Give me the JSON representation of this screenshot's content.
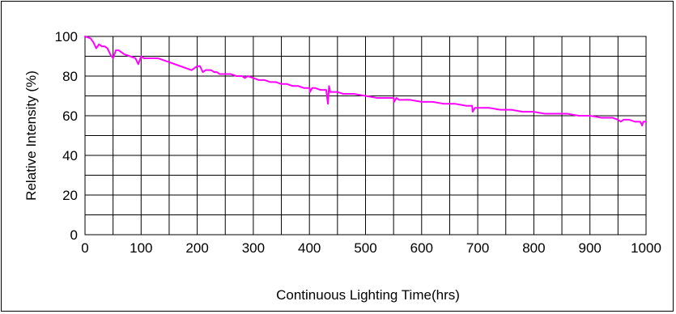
{
  "chart_data": {
    "type": "line",
    "title": "",
    "xlabel": "Continuous Lighting Time(hrs)",
    "ylabel": "Relative Intensity (%)",
    "xlim": [
      0,
      1000
    ],
    "ylim": [
      0,
      100
    ],
    "xticks": [
      0,
      100,
      200,
      300,
      400,
      500,
      600,
      700,
      800,
      900,
      1000
    ],
    "yticks": [
      0,
      20,
      40,
      60,
      80,
      100
    ],
    "x_gridline_step": 50,
    "y_gridline_step": 10,
    "grid": true,
    "legend": "none",
    "series": [
      {
        "color": "#ff00ff",
        "x": [
          0,
          10,
          15,
          20,
          25,
          30,
          35,
          40,
          45,
          50,
          55,
          60,
          70,
          80,
          90,
          95,
          100,
          105,
          110,
          120,
          130,
          150,
          170,
          190,
          195,
          200,
          205,
          210,
          215,
          220,
          225,
          230,
          235,
          240,
          250,
          260,
          270,
          280,
          285,
          290,
          300,
          310,
          320,
          330,
          340,
          350,
          360,
          370,
          380,
          390,
          400,
          401,
          405,
          410,
          420,
          430,
          433,
          435,
          437,
          440,
          450,
          460,
          470,
          480,
          500,
          520,
          540,
          550,
          551,
          555,
          560,
          580,
          600,
          620,
          640,
          660,
          680,
          690,
          691,
          695,
          700,
          720,
          740,
          760,
          780,
          800,
          820,
          840,
          860,
          880,
          900,
          920,
          940,
          950,
          955,
          960,
          970,
          980,
          990,
          993,
          995,
          1000
        ],
        "y": [
          100,
          99,
          97,
          94,
          96,
          95,
          95,
          94,
          91,
          89,
          93,
          93,
          91,
          90,
          89,
          86,
          90,
          89,
          89,
          89,
          89,
          87,
          85,
          83,
          84,
          85,
          85,
          82,
          83,
          83,
          83,
          82,
          82,
          81,
          81,
          81,
          80,
          80,
          79,
          80,
          79,
          78,
          78,
          77,
          77,
          76,
          76,
          75,
          75,
          74,
          74,
          72,
          74,
          74,
          73,
          73,
          66,
          75,
          72,
          72,
          72,
          71,
          71,
          71,
          70,
          69,
          69,
          69,
          67,
          69,
          68,
          68,
          67,
          67,
          66,
          66,
          65,
          65,
          62,
          64,
          64,
          64,
          63,
          63,
          62,
          62,
          61,
          61,
          61,
          60,
          60,
          59,
          59,
          58,
          57,
          58,
          58,
          57,
          57,
          55,
          57,
          57
        ]
      }
    ]
  }
}
